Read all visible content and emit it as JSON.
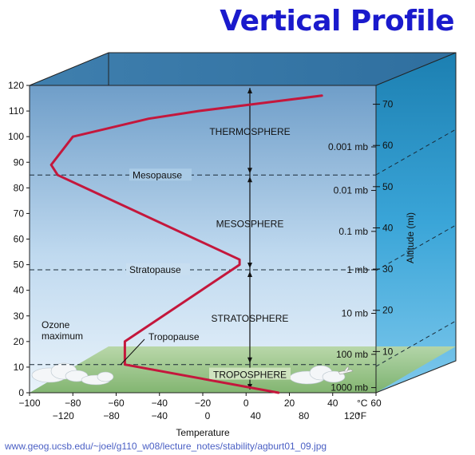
{
  "title": "Vertical Profile",
  "source_url": "www.geog.ucsb.edu/~joel/g110_w08/lecture_notes/stability/agburt01_09.jpg",
  "chart_data": {
    "type": "line",
    "title": "Vertical Profile",
    "xlabel": "Temperature",
    "x_unit_c": "°C",
    "x_unit_f": "°F",
    "xlim": [
      -100,
      60
    ],
    "ylim": [
      0,
      120
    ],
    "y_ticks": [
      0,
      10,
      20,
      30,
      40,
      50,
      60,
      70,
      80,
      90,
      100,
      110,
      120
    ],
    "x_ticks_c": [
      -100,
      -80,
      -60,
      -40,
      -20,
      0,
      20,
      40,
      60
    ],
    "x_ticks_f": [
      {
        "c": -84.4,
        "label": "−120"
      },
      {
        "c": -62.2,
        "label": "−80"
      },
      {
        "c": -40,
        "label": "−40"
      },
      {
        "c": -17.8,
        "label": "0"
      },
      {
        "c": 4.4,
        "label": "40"
      },
      {
        "c": 26.7,
        "label": "80"
      },
      {
        "c": 48.9,
        "label": "120"
      }
    ],
    "right_axis_label": "Altitude (mi)",
    "right_ticks_mi": [
      10,
      20,
      30,
      40,
      50,
      60,
      70
    ],
    "pressure_labels": [
      {
        "label": "1000 mb",
        "y": 2
      },
      {
        "label": "100 mb",
        "y": 15
      },
      {
        "label": "10 mb",
        "y": 31
      },
      {
        "label": "1 mb",
        "y": 48
      },
      {
        "label": "0.1 mb",
        "y": 63
      },
      {
        "label": "0.01 mb",
        "y": 79
      },
      {
        "label": "0.001 mb",
        "y": 96
      }
    ],
    "boundaries": [
      {
        "name": "Tropopause",
        "y": 11
      },
      {
        "name": "Stratopause",
        "y": 48
      },
      {
        "name": "Mesopause",
        "y": 85
      }
    ],
    "layers": [
      {
        "name": "TROPOSPHERE",
        "y": 7
      },
      {
        "name": "STRATOSPHERE",
        "y": 29
      },
      {
        "name": "MESOSPHERE",
        "y": 66
      },
      {
        "name": "THERMOSPHERE",
        "y": 102
      }
    ],
    "annotations": [
      {
        "text": "Ozone",
        "x": -97,
        "y": 25
      },
      {
        "text": "maximum",
        "x": -97,
        "y": 20.5
      }
    ],
    "series": [
      {
        "x": [
          15,
          -56,
          -56,
          -3,
          -3,
          -87,
          -90,
          -80,
          -45,
          -22,
          35
        ],
        "y": [
          0,
          11,
          20,
          50,
          52,
          85,
          89,
          100,
          107,
          110,
          116
        ]
      }
    ],
    "colors": {
      "line": "#c4173c",
      "sky_top": "#6f9ec9",
      "sky_bottom": "#e4f1fb",
      "ground": "#8cbf7a",
      "title": "#1a1acc"
    }
  }
}
